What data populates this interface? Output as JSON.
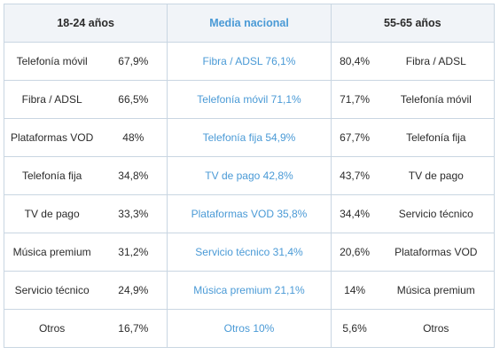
{
  "headers": {
    "group1": "18-24 años",
    "group2": "Media nacional",
    "group3": "55-65 años"
  },
  "colors": {
    "accent": "#4a9ad6",
    "header_bg": "#f1f4f8",
    "border": "#c9d6e2",
    "text": "#2b2b2b"
  },
  "rows": [
    {
      "g1_label": "Telefonía móvil",
      "g1_value": "67,9%",
      "g2": "Fibra / ADSL 76,1%",
      "g3_value": "80,4%",
      "g3_label": "Fibra / ADSL"
    },
    {
      "g1_label": "Fibra / ADSL",
      "g1_value": "66,5%",
      "g2": "Telefonía móvil 71,1%",
      "g3_value": "71,7%",
      "g3_label": "Telefonía móvil"
    },
    {
      "g1_label": "Plataformas VOD",
      "g1_value": "48%",
      "g2": "Telefonía fija 54,9%",
      "g3_value": "67,7%",
      "g3_label": "Telefonía fija"
    },
    {
      "g1_label": "Telefonía fija",
      "g1_value": "34,8%",
      "g2": "TV de pago 42,8%",
      "g3_value": "43,7%",
      "g3_label": "TV de pago"
    },
    {
      "g1_label": "TV de pago",
      "g1_value": "33,3%",
      "g2": "Plataformas VOD 35,8%",
      "g3_value": "34,4%",
      "g3_label": "Servicio técnico"
    },
    {
      "g1_label": "Música premium",
      "g1_value": "31,2%",
      "g2": "Servicio técnico 31,4%",
      "g3_value": "20,6%",
      "g3_label": "Plataformas VOD"
    },
    {
      "g1_label": "Servicio técnico",
      "g1_value": "24,9%",
      "g2": "Música premium 21,1%",
      "g3_value": "14%",
      "g3_label": "Música premium"
    },
    {
      "g1_label": "Otros",
      "g1_value": "16,7%",
      "g2": "Otros 10%",
      "g3_value": "5,6%",
      "g3_label": "Otros"
    }
  ]
}
